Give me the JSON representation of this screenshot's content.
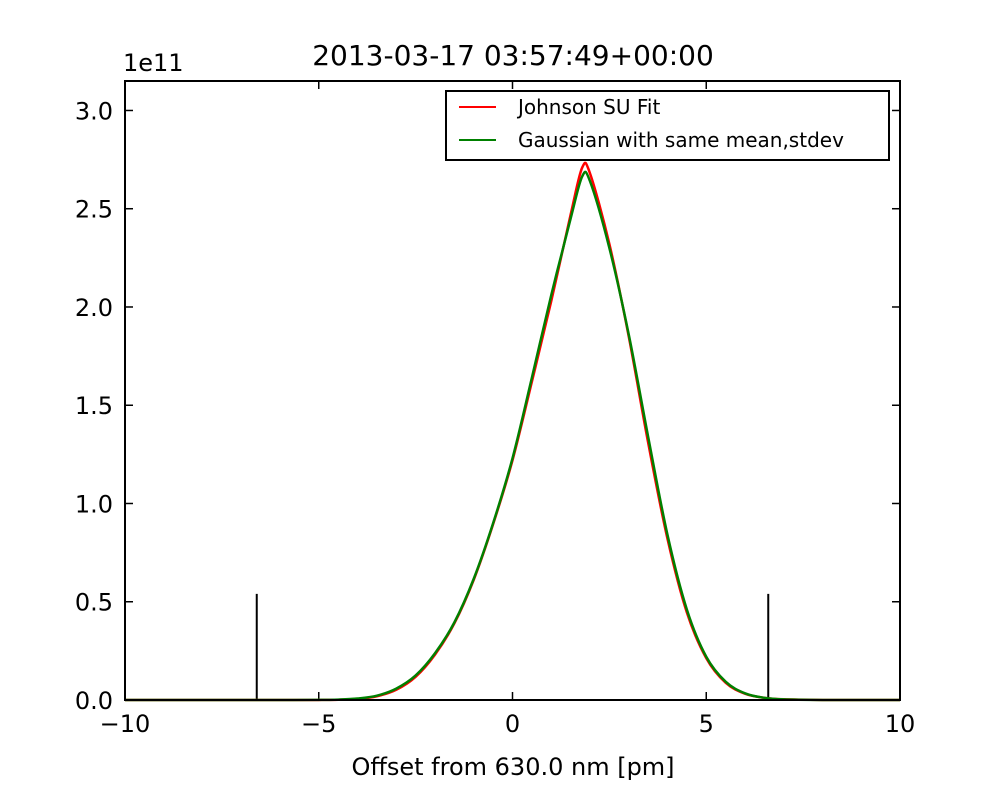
{
  "chart_data": {
    "type": "line",
    "title": "2013-03-17 03:57:49+00:00",
    "xlabel": "Offset from 630.0 nm [pm]",
    "ylabel": "",
    "offset_label": "1e11",
    "xlim": [
      -10,
      10
    ],
    "ylim": [
      0,
      3.15
    ],
    "x_ticks": [
      -10,
      -5,
      0,
      5,
      10
    ],
    "x_tick_labels": [
      "−10",
      "−5",
      "0",
      "5",
      "10"
    ],
    "y_ticks": [
      0.0,
      0.5,
      1.0,
      1.5,
      2.0,
      2.5,
      3.0
    ],
    "y_tick_labels": [
      "0.0",
      "0.5",
      "1.0",
      "1.5",
      "2.0",
      "2.5",
      "3.0"
    ],
    "grid": false,
    "legend_position": "top-right",
    "x": [
      -10,
      -9,
      -8,
      -7,
      -6,
      -5,
      -4.5,
      -4,
      -3.5,
      -3,
      -2.5,
      -2,
      -1.5,
      -1,
      -0.5,
      0,
      0.5,
      1,
      1.5,
      1.8,
      2,
      2.5,
      3,
      3.5,
      4,
      4.5,
      5,
      5.5,
      6,
      6.5,
      7,
      8,
      9,
      10
    ],
    "series": [
      {
        "name": "Johnson SU Fit",
        "color": "#ff0000",
        "values": [
          0,
          0,
          0,
          0,
          0,
          0.0003,
          0.0015,
          0.0058,
          0.019,
          0.052,
          0.118,
          0.231,
          0.39,
          0.612,
          0.895,
          1.22,
          1.62,
          2.03,
          2.47,
          2.71,
          2.68,
          2.32,
          1.85,
          1.31,
          0.82,
          0.445,
          0.213,
          0.088,
          0.032,
          0.011,
          0.0035,
          0.0003,
          0,
          0
        ]
      },
      {
        "name": "Gaussian with same mean,stdev",
        "color": "#008000",
        "values": [
          0,
          0,
          0,
          0,
          0,
          0.0004,
          0.002,
          0.0075,
          0.022,
          0.058,
          0.125,
          0.238,
          0.395,
          0.617,
          0.9,
          1.23,
          1.64,
          2.06,
          2.45,
          2.665,
          2.64,
          2.3,
          1.86,
          1.34,
          0.84,
          0.46,
          0.22,
          0.093,
          0.034,
          0.011,
          0.0032,
          0.0002,
          0,
          0
        ]
      }
    ],
    "vlines": [
      {
        "x": -6.6,
        "ymax": 0.54,
        "color": "#000000"
      },
      {
        "x": 6.6,
        "ymax": 0.54,
        "color": "#000000"
      }
    ]
  }
}
